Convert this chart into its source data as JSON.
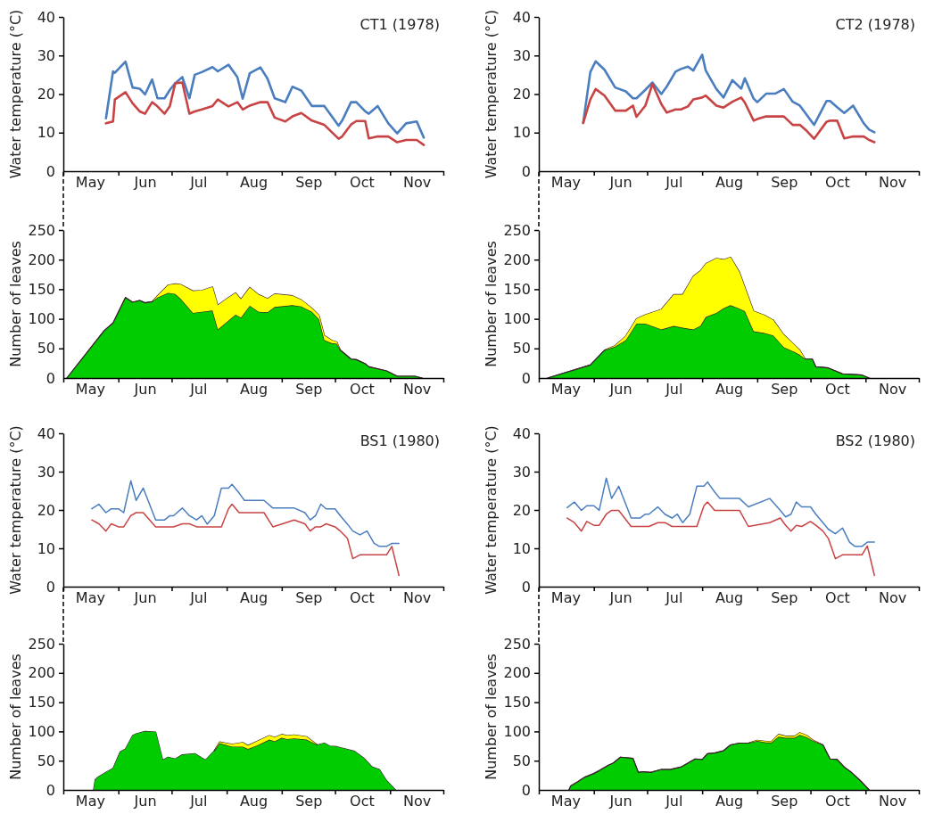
{
  "chart_data": [
    {
      "type": "line",
      "title": "CT1 (1978)",
      "ylabel": "Water temperature (°C)",
      "xlim": [
        "--05-01",
        "--12-01"
      ],
      "xticks": [
        {
          "value": "--05-01",
          "label": null
        },
        {
          "value": "--05-16",
          "label": "May"
        },
        {
          "value": "--06-01",
          "label": null
        },
        {
          "value": "--06-16",
          "label": "Jun"
        },
        {
          "value": "--07-01",
          "label": null
        },
        {
          "value": "--07-16",
          "label": "Jul"
        },
        {
          "value": "--08-01",
          "label": null
        },
        {
          "value": "--08-16",
          "label": "Aug"
        },
        {
          "value": "--09-01",
          "label": null
        },
        {
          "value": "--09-16",
          "label": "Sep"
        },
        {
          "value": "--10-01",
          "label": null
        },
        {
          "value": "--10-16",
          "label": "Oct"
        },
        {
          "value": "--11-01",
          "label": null
        },
        {
          "value": "--11-16",
          "label": "Nov"
        },
        {
          "value": "--12-01",
          "label": null
        }
      ],
      "ylim": [
        0,
        40
      ],
      "yticks": [
        0,
        10,
        20,
        30,
        40
      ],
      "x": [
        "--05-25",
        "--05-29",
        "--05-30",
        "--06-05",
        "--06-09",
        "--06-13",
        "--06-16",
        "--06-20",
        "--06-23",
        "--06-27",
        "--06-30",
        "--07-03",
        "--07-07",
        "--07-11",
        "--07-14",
        "--07-18",
        "--07-24",
        "--07-27",
        "--08-02",
        "--08-07",
        "--08-10",
        "--08-14",
        "--08-20",
        "--08-24",
        "--08-28",
        "--09-03",
        "--09-07",
        "--09-12",
        "--09-18",
        "--09-25",
        "--10-03",
        "--10-05",
        "--10-10",
        "--10-13",
        "--10-18",
        "--10-20",
        "--10-25",
        "--10-31",
        "--11-05",
        "--11-10",
        "--11-16",
        "--11-20"
      ],
      "series": [
        {
          "color": "#4a7ebf",
          "values": [
            13.7,
            25.9,
            25.5,
            28.4,
            21.7,
            21.4,
            19.9,
            23.8,
            18.9,
            18.9,
            21.1,
            22.8,
            24.4,
            18.9,
            25,
            25.7,
            27,
            25.9,
            27.6,
            24.4,
            18.8,
            25.4,
            26.9,
            24,
            18.9,
            17.9,
            21.9,
            20.9,
            16.9,
            16.9,
            11.8,
            13.1,
            17.9,
            17.9,
            15.5,
            14.9,
            16.9,
            12.4,
            9.8,
            12.4,
            12.9,
            8.7
          ]
        },
        {
          "color": "#c84444",
          "values": [
            12.4,
            12.9,
            18.6,
            20.5,
            17.6,
            15.5,
            14.9,
            17.9,
            16.8,
            14.9,
            16.9,
            22.8,
            23,
            14.9,
            15.5,
            16,
            16.9,
            18.6,
            16.8,
            17.9,
            16,
            17,
            17.9,
            17.9,
            13.9,
            12.9,
            14.2,
            15.1,
            13.1,
            12,
            8.4,
            9,
            12.1,
            13,
            13,
            8.5,
            9,
            9,
            7.5,
            8.1,
            8.1,
            6.8
          ]
        }
      ]
    },
    {
      "type": "line",
      "title": "CT2 (1978)",
      "ylabel": "Water temperature (°C)",
      "xlim": [
        "--05-01",
        "--12-01"
      ],
      "xticks": [
        {
          "value": "--05-01",
          "label": null
        },
        {
          "value": "--05-16",
          "label": "May"
        },
        {
          "value": "--06-01",
          "label": null
        },
        {
          "value": "--06-16",
          "label": "Jun"
        },
        {
          "value": "--07-01",
          "label": null
        },
        {
          "value": "--07-16",
          "label": "Jul"
        },
        {
          "value": "--08-01",
          "label": null
        },
        {
          "value": "--08-16",
          "label": "Aug"
        },
        {
          "value": "--09-01",
          "label": null
        },
        {
          "value": "--09-16",
          "label": "Sep"
        },
        {
          "value": "--10-01",
          "label": null
        },
        {
          "value": "--10-16",
          "label": "Oct"
        },
        {
          "value": "--11-01",
          "label": null
        },
        {
          "value": "--11-16",
          "label": "Nov"
        },
        {
          "value": "--12-01",
          "label": null
        }
      ],
      "ylim": [
        0,
        40
      ],
      "yticks": [
        0,
        10,
        20,
        30,
        40
      ],
      "x": [
        "--05-26",
        "--05-30",
        "--06-02",
        "--06-07",
        "--06-13",
        "--06-19",
        "--06-23",
        "--06-25",
        "--06-30",
        "--07-04",
        "--07-09",
        "--07-12",
        "--07-17",
        "--07-20",
        "--07-24",
        "--07-27",
        "--08-01",
        "--08-03",
        "--08-09",
        "--08-13",
        "--08-18",
        "--08-23",
        "--08-25",
        "--08-30",
        "--09-01",
        "--09-06",
        "--09-11",
        "--09-16",
        "--09-21",
        "--09-25",
        "--09-29",
        "--10-03",
        "--10-10",
        "--10-12",
        "--10-16",
        "--10-20",
        "--10-25",
        "--10-31",
        "--11-03",
        "--11-06"
      ],
      "series": [
        {
          "color": "#4a7ebf",
          "values": [
            12.5,
            25.7,
            28.5,
            26.3,
            21.7,
            20.7,
            18.9,
            18.9,
            21.1,
            23,
            20,
            21.9,
            25.8,
            26.5,
            27.1,
            26.1,
            30.2,
            26.1,
            21.3,
            19.1,
            23.6,
            21.4,
            24.1,
            18.8,
            17.9,
            20.1,
            20.1,
            21.3,
            18,
            17,
            14.5,
            12,
            18.2,
            18.2,
            16.6,
            15.1,
            17,
            12.4,
            10.8,
            10.1
          ]
        },
        {
          "color": "#c84444",
          "values": [
            12.5,
            18.6,
            21.3,
            19.6,
            15.7,
            15.7,
            17,
            14.1,
            17,
            22.6,
            17.4,
            15.2,
            16,
            16,
            16.8,
            18.6,
            19.1,
            19.6,
            17,
            16.5,
            18,
            19.1,
            17.8,
            13.1,
            13.5,
            14.2,
            14.2,
            14.2,
            12,
            12,
            10.4,
            8.4,
            12.8,
            13.1,
            13.1,
            8.5,
            9,
            9,
            8.1,
            7.5
          ]
        }
      ]
    },
    {
      "type": "area",
      "stacked": true,
      "ylabel": "Number of leaves",
      "xlim": [
        "--05-01",
        "--12-01"
      ],
      "xticks": [
        {
          "value": "--05-01",
          "label": null
        },
        {
          "value": "--05-16",
          "label": "May"
        },
        {
          "value": "--06-01",
          "label": null
        },
        {
          "value": "--06-16",
          "label": "Jun"
        },
        {
          "value": "--07-01",
          "label": null
        },
        {
          "value": "--07-16",
          "label": "Jul"
        },
        {
          "value": "--08-01",
          "label": null
        },
        {
          "value": "--08-16",
          "label": "Aug"
        },
        {
          "value": "--09-01",
          "label": null
        },
        {
          "value": "--09-16",
          "label": "Sep"
        },
        {
          "value": "--10-01",
          "label": null
        },
        {
          "value": "--10-16",
          "label": "Oct"
        },
        {
          "value": "--11-01",
          "label": null
        },
        {
          "value": "--11-16",
          "label": "Nov"
        },
        {
          "value": "--12-01",
          "label": null
        }
      ],
      "ylim": [
        0,
        250
      ],
      "yticks": [
        0,
        50,
        100,
        150,
        200,
        250
      ],
      "x": [
        "--05-03",
        "--05-24",
        "--05-29",
        "--06-05",
        "--06-09",
        "--06-13",
        "--06-16",
        "--06-20",
        "--06-23",
        "--06-29",
        "--07-03",
        "--07-06",
        "--07-13",
        "--07-18",
        "--07-24",
        "--07-27",
        "--08-02",
        "--08-06",
        "--08-09",
        "--08-14",
        "--08-19",
        "--08-24",
        "--08-28",
        "--09-07",
        "--09-12",
        "--09-18",
        "--09-22",
        "--09-25",
        "--09-29",
        "--10-02",
        "--10-04",
        "--10-10",
        "--10-13",
        "--10-18",
        "--10-20",
        "--10-30",
        "--11-05",
        "--11-15",
        "--11-19"
      ],
      "series": [
        {
          "color": "#00cc00",
          "values": [
            0,
            80,
            93,
            136,
            128,
            131,
            127,
            129,
            136,
            144,
            142,
            134,
            110,
            112,
            114,
            82,
            97,
            107,
            102,
            122,
            112,
            111,
            120,
            123,
            121,
            112,
            99,
            64,
            59,
            58,
            47,
            32,
            31,
            24,
            19,
            12,
            3,
            3,
            0
          ]
        },
        {
          "color": "#ffff00",
          "values": [
            0,
            0,
            0,
            0,
            0,
            0,
            0,
            0,
            3,
            13,
            17,
            24,
            37,
            36,
            40,
            41,
            39,
            37,
            31,
            31,
            29,
            23,
            22,
            16,
            11,
            6,
            7,
            8,
            5,
            3,
            0,
            0,
            0,
            0,
            0,
            0,
            0,
            0,
            0
          ]
        }
      ]
    },
    {
      "type": "area",
      "stacked": true,
      "ylabel": "Number of leaves",
      "xlim": [
        "--05-01",
        "--12-01"
      ],
      "xticks": [
        {
          "value": "--05-01",
          "label": null
        },
        {
          "value": "--05-16",
          "label": "May"
        },
        {
          "value": "--06-01",
          "label": null
        },
        {
          "value": "--06-16",
          "label": "Jun"
        },
        {
          "value": "--07-01",
          "label": null
        },
        {
          "value": "--07-16",
          "label": "Jul"
        },
        {
          "value": "--08-01",
          "label": null
        },
        {
          "value": "--08-16",
          "label": "Aug"
        },
        {
          "value": "--09-01",
          "label": null
        },
        {
          "value": "--09-16",
          "label": "Sep"
        },
        {
          "value": "--10-01",
          "label": null
        },
        {
          "value": "--10-16",
          "label": "Oct"
        },
        {
          "value": "--11-01",
          "label": null
        },
        {
          "value": "--11-16",
          "label": "Nov"
        },
        {
          "value": "--12-01",
          "label": null
        }
      ],
      "ylim": [
        0,
        250
      ],
      "yticks": [
        0,
        50,
        100,
        150,
        200,
        250
      ],
      "x": [
        "--05-06",
        "--05-30",
        "--06-07",
        "--06-13",
        "--06-19",
        "--06-25",
        "--06-30",
        "--07-09",
        "--07-16",
        "--07-21",
        "--07-27",
        "--07-31",
        "--08-03",
        "--08-09",
        "--08-13",
        "--08-17",
        "--08-22",
        "--08-25",
        "--08-30",
        "--09-05",
        "--09-10",
        "--09-16",
        "--09-22",
        "--09-25",
        "--09-28",
        "--10-02",
        "--10-04",
        "--10-11",
        "--10-19",
        "--10-30",
        "--11-03"
      ],
      "series": [
        {
          "color": "#00cc00",
          "values": [
            0,
            22,
            47,
            53,
            64,
            92,
            92,
            82,
            88,
            85,
            82,
            88,
            103,
            110,
            118,
            123,
            117,
            113,
            79,
            76,
            72,
            52,
            44,
            39,
            32,
            32,
            19,
            17,
            7,
            5,
            0
          ]
        },
        {
          "color": "#ffff00",
          "values": [
            0,
            0,
            0,
            2,
            7,
            8,
            15,
            34,
            53,
            56,
            90,
            93,
            90,
            92,
            82,
            81,
            62,
            41,
            34,
            30,
            26,
            21,
            12,
            8,
            0,
            0,
            0,
            0,
            0,
            0,
            0
          ]
        }
      ]
    },
    {
      "type": "line",
      "title": "BS1 (1980)",
      "ylabel": "Water temperature (°C)",
      "xlim": [
        "--05-01",
        "--12-01"
      ],
      "xticks": [
        {
          "value": "--05-01",
          "label": null
        },
        {
          "value": "--05-16",
          "label": "May"
        },
        {
          "value": "--06-01",
          "label": null
        },
        {
          "value": "--06-16",
          "label": "Jun"
        },
        {
          "value": "--07-01",
          "label": null
        },
        {
          "value": "--07-16",
          "label": "Jul"
        },
        {
          "value": "--08-01",
          "label": null
        },
        {
          "value": "--08-16",
          "label": "Aug"
        },
        {
          "value": "--09-01",
          "label": null
        },
        {
          "value": "--09-16",
          "label": "Sep"
        },
        {
          "value": "--10-01",
          "label": null
        },
        {
          "value": "--10-16",
          "label": "Oct"
        },
        {
          "value": "--11-01",
          "label": null
        },
        {
          "value": "--11-16",
          "label": "Nov"
        },
        {
          "value": "--12-01",
          "label": null
        }
      ],
      "ylim": [
        0,
        40
      ],
      "yticks": [
        0,
        10,
        20,
        30,
        40
      ],
      "x": [
        "--05-17",
        "--05-21",
        "--05-25",
        "--05-28",
        "--06-01",
        "--06-04",
        "--06-08",
        "--06-11",
        "--06-15",
        "--06-22",
        "--06-27",
        "--06-30",
        "--07-02",
        "--07-07",
        "--07-11",
        "--07-15",
        "--07-18",
        "--07-21",
        "--07-25",
        "--07-29",
        "--08-02",
        "--08-04",
        "--08-08",
        "--08-11",
        "--08-22",
        "--08-27",
        "--09-08",
        "--09-14",
        "--09-17",
        "--09-20",
        "--09-23",
        "--09-26",
        "--10-01",
        "--10-04",
        "--10-08",
        "--10-11",
        "--10-15",
        "--10-19",
        "--10-23",
        "--10-26",
        "--10-30",
        "--11-02",
        "--11-06"
      ],
      "series": [
        {
          "color": "#4a7ebf",
          "values": [
            20.3,
            21.5,
            19.3,
            20.3,
            20.3,
            19.3,
            27.6,
            22.5,
            25.7,
            17.4,
            17.4,
            18.5,
            18.5,
            20.5,
            18.5,
            17.4,
            18.5,
            16.3,
            18.5,
            25.7,
            25.7,
            26.7,
            24.4,
            22.5,
            22.5,
            20.5,
            20.5,
            19.3,
            17.4,
            18.5,
            21.5,
            20.3,
            20.3,
            18.5,
            16.3,
            14.5,
            13.5,
            14.5,
            11.3,
            10.5,
            10.5,
            11.3,
            11.3
          ]
        },
        {
          "color": "#c84444",
          "values": [
            17.4,
            16.4,
            14.5,
            16.4,
            15.6,
            15.6,
            18.5,
            19.3,
            19.3,
            15.6,
            15.6,
            15.6,
            15.6,
            16.4,
            16.4,
            15.6,
            15.6,
            15.6,
            15.6,
            15.6,
            20.3,
            21.5,
            19.3,
            19.3,
            19.3,
            15.6,
            17.4,
            16.4,
            14.5,
            15.6,
            15.6,
            16.4,
            15.6,
            14.5,
            12.6,
            7.3,
            8.3,
            8.3,
            8.3,
            8.3,
            8.3,
            10.5,
            2.9
          ]
        }
      ]
    },
    {
      "type": "line",
      "title": "BS2 (1980)",
      "ylabel": "Water temperature (°C)",
      "xlim": [
        "--05-01",
        "--12-01"
      ],
      "xticks": [
        {
          "value": "--05-01",
          "label": null
        },
        {
          "value": "--05-16",
          "label": "May"
        },
        {
          "value": "--06-01",
          "label": null
        },
        {
          "value": "--06-16",
          "label": "Jun"
        },
        {
          "value": "--07-01",
          "label": null
        },
        {
          "value": "--07-16",
          "label": "Jul"
        },
        {
          "value": "--08-01",
          "label": null
        },
        {
          "value": "--08-16",
          "label": "Aug"
        },
        {
          "value": "--09-01",
          "label": null
        },
        {
          "value": "--09-16",
          "label": "Sep"
        },
        {
          "value": "--10-01",
          "label": null
        },
        {
          "value": "--10-16",
          "label": "Oct"
        },
        {
          "value": "--11-01",
          "label": null
        },
        {
          "value": "--11-16",
          "label": "Nov"
        },
        {
          "value": "--12-01",
          "label": null
        }
      ],
      "ylim": [
        0,
        40
      ],
      "yticks": [
        0,
        10,
        20,
        30,
        40
      ],
      "x": [
        "--05-17",
        "--05-21",
        "--05-25",
        "--05-28",
        "--06-01",
        "--06-04",
        "--06-08",
        "--06-11",
        "--06-15",
        "--06-22",
        "--06-27",
        "--06-30",
        "--07-02",
        "--07-07",
        "--07-11",
        "--07-15",
        "--07-18",
        "--07-21",
        "--07-25",
        "--07-29",
        "--08-02",
        "--08-04",
        "--08-08",
        "--08-11",
        "--08-22",
        "--08-27",
        "--09-08",
        "--09-14",
        "--09-17",
        "--09-20",
        "--09-23",
        "--09-26",
        "--10-01",
        "--10-04",
        "--10-08",
        "--10-11",
        "--10-15",
        "--10-19",
        "--10-23",
        "--10-26",
        "--10-30",
        "--11-02",
        "--11-06"
      ],
      "series": [
        {
          "color": "#4a7ebf",
          "values": [
            20.6,
            22.1,
            19.9,
            21.1,
            21.1,
            19.9,
            28.3,
            23,
            26.2,
            17.9,
            17.9,
            18.9,
            18.9,
            20.8,
            18.9,
            17.9,
            18.9,
            16.7,
            18.9,
            26.2,
            26.2,
            27.3,
            24.7,
            23,
            23,
            20.8,
            23,
            19.9,
            18.2,
            18.9,
            22.1,
            20.8,
            20.8,
            18.9,
            16.7,
            15,
            13.8,
            15.3,
            11.6,
            10.5,
            10.5,
            11.6,
            11.6
          ]
        },
        {
          "color": "#c84444",
          "values": [
            17.9,
            16.7,
            14.5,
            17,
            16,
            16,
            18.9,
            19.9,
            19.9,
            15.7,
            15.7,
            15.7,
            15.7,
            16.7,
            16.7,
            15.7,
            15.7,
            15.7,
            15.7,
            15.7,
            21.1,
            22.1,
            19.9,
            19.9,
            19.9,
            15.7,
            16.7,
            17.9,
            16,
            14.5,
            16,
            15.7,
            17,
            16,
            14.5,
            12.6,
            7.3,
            8.3,
            8.3,
            8.3,
            8.3,
            10.6,
            2.9
          ]
        }
      ]
    },
    {
      "type": "area",
      "stacked": true,
      "ylabel": "Number of leaves",
      "xlim": [
        "--05-01",
        "--12-01"
      ],
      "xticks": [
        {
          "value": "--05-01",
          "label": null
        },
        {
          "value": "--05-16",
          "label": "May"
        },
        {
          "value": "--06-01",
          "label": null
        },
        {
          "value": "--06-16",
          "label": "Jun"
        },
        {
          "value": "--07-01",
          "label": null
        },
        {
          "value": "--07-16",
          "label": "Jul"
        },
        {
          "value": "--08-01",
          "label": null
        },
        {
          "value": "--08-16",
          "label": "Aug"
        },
        {
          "value": "--09-01",
          "label": null
        },
        {
          "value": "--09-16",
          "label": "Sep"
        },
        {
          "value": "--10-01",
          "label": null
        },
        {
          "value": "--10-16",
          "label": "Oct"
        },
        {
          "value": "--11-01",
          "label": null
        },
        {
          "value": "--11-16",
          "label": "Nov"
        },
        {
          "value": "--12-01",
          "label": null
        }
      ],
      "ylim": [
        0,
        250
      ],
      "yticks": [
        0,
        50,
        100,
        150,
        200,
        250
      ],
      "x": [
        "--05-18",
        "--05-19",
        "--05-21",
        "--05-25",
        "--05-29",
        "--06-02",
        "--06-05",
        "--06-09",
        "--06-11",
        "--06-16",
        "--06-22",
        "--06-26",
        "--06-29",
        "--07-03",
        "--07-07",
        "--07-14",
        "--07-20",
        "--07-25",
        "--07-28",
        "--08-04",
        "--08-10",
        "--08-13",
        "--08-18",
        "--08-25",
        "--08-28",
        "--09-01",
        "--09-04",
        "--09-08",
        "--09-15",
        "--09-21",
        "--09-25",
        "--09-28",
        "--10-02",
        "--10-12",
        "--10-17",
        "--10-22",
        "--10-26",
        "--10-30",
        "--11-04"
      ],
      "series": [
        {
          "color": "#00cc00",
          "values": [
            0,
            18,
            23,
            30,
            37,
            65,
            70,
            93,
            96,
            100,
            99,
            51,
            56,
            53,
            60,
            62,
            51,
            67,
            80,
            74,
            74,
            70,
            76,
            86,
            83,
            89,
            87,
            88,
            86,
            77,
            80,
            75,
            74,
            66,
            55,
            39,
            35,
            16,
            0
          ]
        },
        {
          "color": "#ffff00",
          "values": [
            null,
            null,
            null,
            null,
            null,
            null,
            null,
            null,
            null,
            null,
            null,
            null,
            null,
            null,
            null,
            null,
            null,
            0,
            2,
            4,
            7,
            6,
            7,
            7,
            7,
            6,
            6,
            6,
            5,
            0,
            null,
            null,
            null,
            null,
            null,
            null,
            null,
            null,
            null
          ]
        }
      ]
    },
    {
      "type": "area",
      "stacked": true,
      "ylabel": "Number of leaves",
      "xlim": [
        "--05-01",
        "--12-01"
      ],
      "xticks": [
        {
          "value": "--05-01",
          "label": null
        },
        {
          "value": "--05-16",
          "label": "May"
        },
        {
          "value": "--06-01",
          "label": null
        },
        {
          "value": "--06-16",
          "label": "Jun"
        },
        {
          "value": "--07-01",
          "label": null
        },
        {
          "value": "--07-16",
          "label": "Jul"
        },
        {
          "value": "--08-01",
          "label": null
        },
        {
          "value": "--08-16",
          "label": "Aug"
        },
        {
          "value": "--09-01",
          "label": null
        },
        {
          "value": "--09-16",
          "label": "Sep"
        },
        {
          "value": "--10-01",
          "label": null
        },
        {
          "value": "--10-16",
          "label": "Oct"
        },
        {
          "value": "--11-01",
          "label": null
        },
        {
          "value": "--11-16",
          "label": "Nov"
        },
        {
          "value": "--12-01",
          "label": null
        }
      ],
      "ylim": [
        0,
        250
      ],
      "yticks": [
        0,
        50,
        100,
        150,
        200,
        250
      ],
      "x": [
        "--05-18",
        "--05-19",
        "--05-23",
        "--05-27",
        "--06-01",
        "--06-04",
        "--06-09",
        "--06-12",
        "--06-16",
        "--06-23",
        "--06-26",
        "--06-29",
        "--07-03",
        "--07-09",
        "--07-14",
        "--07-20",
        "--07-28",
        "--08-01",
        "--08-04",
        "--08-08",
        "--08-13",
        "--08-17",
        "--08-22",
        "--08-27",
        "--09-01",
        "--09-06",
        "--09-09",
        "--09-13",
        "--09-17",
        "--09-22",
        "--09-25",
        "--09-29",
        "--10-03",
        "--10-08",
        "--10-12",
        "--10-16",
        "--10-20",
        "--10-24",
        "--10-29",
        "--11-03"
      ],
      "series": [
        {
          "color": "#00cc00",
          "values": [
            0,
            7,
            14,
            22,
            28,
            33,
            42,
            46,
            56,
            54,
            30,
            31,
            30,
            35,
            35,
            39,
            53,
            52,
            62,
            63,
            67,
            77,
            80,
            80,
            84,
            81,
            81,
            91,
            89,
            89,
            94,
            90,
            83,
            77,
            53,
            52,
            39,
            30,
            16,
            0
          ]
        },
        {
          "color": "#ffff00",
          "values": [
            0,
            0,
            0,
            0,
            0,
            0,
            0,
            0,
            0,
            0,
            0,
            0,
            0,
            0,
            0,
            0,
            0,
            0,
            0,
            0,
            0,
            0,
            0,
            0,
            1,
            2,
            2,
            4,
            3,
            3,
            4,
            3,
            1,
            0,
            0,
            0,
            0,
            0,
            0,
            0
          ]
        }
      ]
    }
  ]
}
